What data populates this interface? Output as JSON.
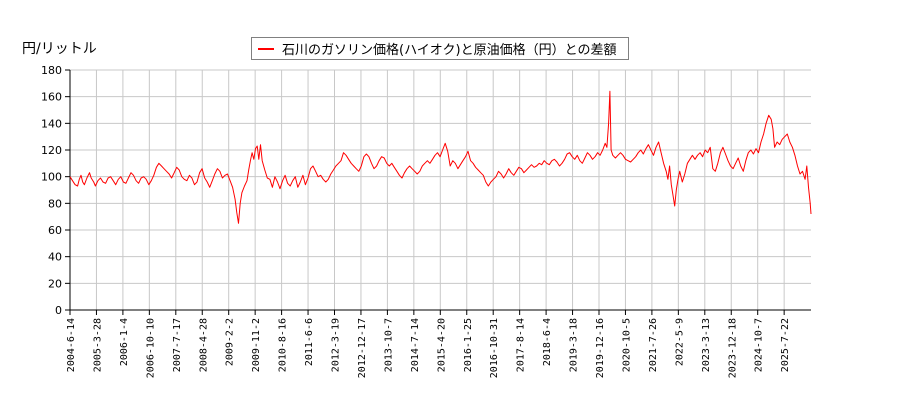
{
  "chart_data": {
    "type": "line",
    "title": "",
    "ylabel": "円/リットル",
    "xlabel": "",
    "ylim": [
      0,
      180
    ],
    "yticks": [
      0,
      20,
      40,
      60,
      80,
      100,
      120,
      140,
      160,
      180
    ],
    "grid": true,
    "legend_position": "top-center",
    "x_tick_labels": [
      "2004-6-14",
      "2005-3-28",
      "2006-1-4",
      "2006-10-10",
      "2007-7-17",
      "2008-4-28",
      "2009-2-2",
      "2009-11-2",
      "2010-8-16",
      "2011-6-6",
      "2012-3-19",
      "2012-12-17",
      "2013-10-7",
      "2014-7-14",
      "2015-4-20",
      "2016-1-25",
      "2016-10-31",
      "2017-8-14",
      "2018-6-4",
      "2019-3-18",
      "2019-12-16",
      "2020-10-5",
      "2021-7-26",
      "2022-5-9",
      "2023-3-13",
      "2023-12-18",
      "2024-10-7",
      "2025-7-22"
    ],
    "series": [
      {
        "name": "石川のガソリン価格(ハイオク)と原油価格（円）との差額",
        "color": "#ff0000",
        "points": [
          [
            0.0,
            100
          ],
          [
            0.3,
            97
          ],
          [
            0.6,
            94
          ],
          [
            0.9,
            93
          ],
          [
            1.1,
            98
          ],
          [
            1.3,
            101
          ],
          [
            1.5,
            96
          ],
          [
            1.7,
            94
          ],
          [
            2.0,
            99
          ],
          [
            2.3,
            103
          ],
          [
            2.5,
            99
          ],
          [
            2.8,
            96
          ],
          [
            3.0,
            93
          ],
          [
            3.3,
            97
          ],
          [
            3.6,
            99
          ],
          [
            3.9,
            96
          ],
          [
            4.2,
            95
          ],
          [
            4.5,
            99
          ],
          [
            4.8,
            100
          ],
          [
            5.1,
            97
          ],
          [
            5.4,
            94
          ],
          [
            5.7,
            98
          ],
          [
            6.0,
            100
          ],
          [
            6.3,
            96
          ],
          [
            6.6,
            95
          ],
          [
            6.9,
            99
          ],
          [
            7.2,
            103
          ],
          [
            7.5,
            101
          ],
          [
            7.8,
            97
          ],
          [
            8.1,
            95
          ],
          [
            8.4,
            99
          ],
          [
            8.7,
            100
          ],
          [
            9.0,
            98
          ],
          [
            9.3,
            94
          ],
          [
            9.6,
            97
          ],
          [
            9.9,
            101
          ],
          [
            10.2,
            107
          ],
          [
            10.5,
            110
          ],
          [
            10.8,
            108
          ],
          [
            11.1,
            106
          ],
          [
            11.4,
            104
          ],
          [
            11.7,
            102
          ],
          [
            12.0,
            99
          ],
          [
            12.3,
            103
          ],
          [
            12.6,
            107
          ],
          [
            12.9,
            105
          ],
          [
            13.2,
            100
          ],
          [
            13.5,
            98
          ],
          [
            13.8,
            97
          ],
          [
            14.1,
            101
          ],
          [
            14.4,
            99
          ],
          [
            14.7,
            94
          ],
          [
            15.0,
            96
          ],
          [
            15.3,
            103
          ],
          [
            15.6,
            106
          ],
          [
            15.9,
            99
          ],
          [
            16.2,
            96
          ],
          [
            16.5,
            92
          ],
          [
            16.8,
            97
          ],
          [
            17.1,
            102
          ],
          [
            17.4,
            106
          ],
          [
            17.7,
            104
          ],
          [
            18.0,
            99
          ],
          [
            18.3,
            101
          ],
          [
            18.6,
            102
          ],
          [
            18.9,
            97
          ],
          [
            19.2,
            92
          ],
          [
            19.5,
            83
          ],
          [
            19.7,
            73
          ],
          [
            19.9,
            65
          ],
          [
            20.1,
            80
          ],
          [
            20.3,
            88
          ],
          [
            20.6,
            93
          ],
          [
            20.9,
            97
          ],
          [
            21.1,
            105
          ],
          [
            21.3,
            112
          ],
          [
            21.5,
            118
          ],
          [
            21.7,
            113
          ],
          [
            21.9,
            121
          ],
          [
            22.1,
            123
          ],
          [
            22.3,
            113
          ],
          [
            22.5,
            124
          ],
          [
            22.7,
            112
          ],
          [
            23.0,
            105
          ],
          [
            23.3,
            99
          ],
          [
            23.6,
            98
          ],
          [
            23.9,
            92
          ],
          [
            24.2,
            100
          ],
          [
            24.5,
            96
          ],
          [
            24.8,
            91
          ],
          [
            25.1,
            97
          ],
          [
            25.4,
            101
          ],
          [
            25.7,
            95
          ],
          [
            26.0,
            93
          ],
          [
            26.3,
            97
          ],
          [
            26.6,
            100
          ],
          [
            26.9,
            92
          ],
          [
            27.2,
            96
          ],
          [
            27.5,
            101
          ],
          [
            27.8,
            94
          ],
          [
            28.1,
            99
          ],
          [
            28.4,
            106
          ],
          [
            28.7,
            108
          ],
          [
            29.0,
            104
          ],
          [
            29.3,
            100
          ],
          [
            29.6,
            101
          ],
          [
            29.9,
            98
          ],
          [
            30.2,
            96
          ],
          [
            30.5,
            98
          ],
          [
            30.8,
            102
          ],
          [
            31.1,
            105
          ],
          [
            31.4,
            108
          ],
          [
            31.7,
            110
          ],
          [
            32.0,
            112
          ],
          [
            32.3,
            118
          ],
          [
            32.6,
            116
          ],
          [
            32.9,
            113
          ],
          [
            33.2,
            110
          ],
          [
            33.5,
            108
          ],
          [
            33.8,
            106
          ],
          [
            34.1,
            104
          ],
          [
            34.4,
            108
          ],
          [
            34.7,
            115
          ],
          [
            35.0,
            117
          ],
          [
            35.3,
            115
          ],
          [
            35.6,
            110
          ],
          [
            35.9,
            106
          ],
          [
            36.2,
            108
          ],
          [
            36.5,
            112
          ],
          [
            36.8,
            115
          ],
          [
            37.1,
            114
          ],
          [
            37.4,
            110
          ],
          [
            37.7,
            108
          ],
          [
            38.0,
            110
          ],
          [
            38.3,
            107
          ],
          [
            38.6,
            104
          ],
          [
            38.9,
            101
          ],
          [
            39.2,
            99
          ],
          [
            39.5,
            103
          ],
          [
            39.8,
            106
          ],
          [
            40.1,
            108
          ],
          [
            40.4,
            106
          ],
          [
            40.7,
            104
          ],
          [
            41.0,
            102
          ],
          [
            41.3,
            104
          ],
          [
            41.6,
            108
          ],
          [
            41.9,
            110
          ],
          [
            42.2,
            112
          ],
          [
            42.5,
            110
          ],
          [
            42.8,
            113
          ],
          [
            43.1,
            116
          ],
          [
            43.4,
            118
          ],
          [
            43.7,
            115
          ],
          [
            44.0,
            120
          ],
          [
            44.3,
            125
          ],
          [
            44.6,
            119
          ],
          [
            44.9,
            108
          ],
          [
            45.2,
            112
          ],
          [
            45.5,
            110
          ],
          [
            45.8,
            106
          ],
          [
            46.1,
            109
          ],
          [
            46.4,
            112
          ],
          [
            46.7,
            115
          ],
          [
            47.0,
            119
          ],
          [
            47.3,
            112
          ],
          [
            47.6,
            110
          ],
          [
            47.9,
            107
          ],
          [
            48.2,
            105
          ],
          [
            48.5,
            103
          ],
          [
            48.8,
            101
          ],
          [
            49.1,
            96
          ],
          [
            49.4,
            93
          ],
          [
            49.7,
            96
          ],
          [
            50.0,
            98
          ],
          [
            50.3,
            100
          ],
          [
            50.6,
            104
          ],
          [
            50.9,
            102
          ],
          [
            51.2,
            99
          ],
          [
            51.5,
            102
          ],
          [
            51.8,
            106
          ],
          [
            52.1,
            103
          ],
          [
            52.4,
            101
          ],
          [
            52.7,
            104
          ],
          [
            53.0,
            107
          ],
          [
            53.3,
            106
          ],
          [
            53.6,
            103
          ],
          [
            53.9,
            105
          ],
          [
            54.2,
            107
          ],
          [
            54.5,
            109
          ],
          [
            54.8,
            107
          ],
          [
            55.1,
            108
          ],
          [
            55.4,
            110
          ],
          [
            55.7,
            109
          ],
          [
            56.0,
            112
          ],
          [
            56.3,
            110
          ],
          [
            56.6,
            109
          ],
          [
            56.9,
            112
          ],
          [
            57.2,
            113
          ],
          [
            57.5,
            111
          ],
          [
            57.8,
            108
          ],
          [
            58.1,
            110
          ],
          [
            58.4,
            113
          ],
          [
            58.7,
            117
          ],
          [
            59.0,
            118
          ],
          [
            59.3,
            115
          ],
          [
            59.6,
            113
          ],
          [
            59.9,
            116
          ],
          [
            60.2,
            112
          ],
          [
            60.5,
            110
          ],
          [
            60.8,
            114
          ],
          [
            61.1,
            118
          ],
          [
            61.4,
            116
          ],
          [
            61.7,
            113
          ],
          [
            62.0,
            115
          ],
          [
            62.3,
            118
          ],
          [
            62.6,
            116
          ],
          [
            62.9,
            120
          ],
          [
            63.2,
            125
          ],
          [
            63.4,
            122
          ],
          [
            63.6,
            140
          ],
          [
            63.75,
            164
          ],
          [
            63.9,
            120
          ],
          [
            64.1,
            116
          ],
          [
            64.4,
            114
          ],
          [
            64.7,
            116
          ],
          [
            65.0,
            118
          ],
          [
            65.3,
            116
          ],
          [
            65.6,
            113
          ],
          [
            65.9,
            112
          ],
          [
            66.2,
            111
          ],
          [
            66.5,
            113
          ],
          [
            66.8,
            115
          ],
          [
            67.1,
            118
          ],
          [
            67.4,
            120
          ],
          [
            67.7,
            117
          ],
          [
            68.0,
            121
          ],
          [
            68.3,
            124
          ],
          [
            68.6,
            120
          ],
          [
            68.9,
            116
          ],
          [
            69.2,
            122
          ],
          [
            69.5,
            126
          ],
          [
            69.8,
            118
          ],
          [
            70.1,
            110
          ],
          [
            70.4,
            104
          ],
          [
            70.6,
            98
          ],
          [
            70.8,
            108
          ],
          [
            71.0,
            94
          ],
          [
            71.2,
            86
          ],
          [
            71.4,
            78
          ],
          [
            71.6,
            90
          ],
          [
            71.8,
            98
          ],
          [
            72.0,
            104
          ],
          [
            72.3,
            96
          ],
          [
            72.6,
            102
          ],
          [
            72.9,
            110
          ],
          [
            73.2,
            113
          ],
          [
            73.5,
            116
          ],
          [
            73.8,
            113
          ],
          [
            74.1,
            116
          ],
          [
            74.4,
            118
          ],
          [
            74.7,
            115
          ],
          [
            75.0,
            120
          ],
          [
            75.3,
            118
          ],
          [
            75.6,
            122
          ],
          [
            75.9,
            106
          ],
          [
            76.2,
            104
          ],
          [
            76.5,
            110
          ],
          [
            76.8,
            118
          ],
          [
            77.1,
            122
          ],
          [
            77.4,
            117
          ],
          [
            77.7,
            112
          ],
          [
            78.0,
            108
          ],
          [
            78.3,
            106
          ],
          [
            78.6,
            110
          ],
          [
            78.9,
            114
          ],
          [
            79.2,
            108
          ],
          [
            79.5,
            104
          ],
          [
            79.8,
            112
          ],
          [
            80.1,
            118
          ],
          [
            80.4,
            120
          ],
          [
            80.7,
            117
          ],
          [
            81.0,
            121
          ],
          [
            81.3,
            118
          ],
          [
            81.6,
            126
          ],
          [
            81.9,
            132
          ],
          [
            82.2,
            140
          ],
          [
            82.5,
            146
          ],
          [
            82.8,
            143
          ],
          [
            83.0,
            136
          ],
          [
            83.2,
            122
          ],
          [
            83.5,
            126
          ],
          [
            83.8,
            124
          ],
          [
            84.1,
            128
          ],
          [
            84.4,
            130
          ],
          [
            84.7,
            132
          ],
          [
            85.0,
            126
          ],
          [
            85.3,
            122
          ],
          [
            85.6,
            116
          ],
          [
            85.9,
            108
          ],
          [
            86.2,
            102
          ],
          [
            86.5,
            104
          ],
          [
            86.8,
            98
          ],
          [
            87.0,
            108
          ],
          [
            87.2,
            92
          ],
          [
            87.4,
            80
          ],
          [
            87.5,
            72
          ]
        ]
      }
    ]
  },
  "header": {
    "ylabel": "円/リットル"
  },
  "legend": {
    "label": "石川のガソリン価格(ハイオク)と原油価格（円）との差額",
    "color": "#ff0000"
  },
  "colors": {
    "line": "#ff0000",
    "grid": "#c8c8c8",
    "axis": "#000000"
  }
}
